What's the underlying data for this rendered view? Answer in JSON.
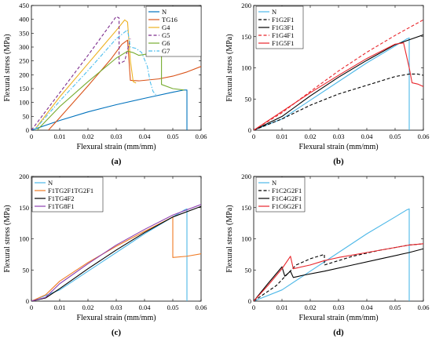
{
  "chart_data": [
    {
      "type": "line",
      "panel_label": "(a)",
      "xlabel": "Flexural strain (mm/mm)",
      "ylabel": "Flexural stress (MPa)",
      "xlim": [
        0,
        0.06
      ],
      "ylim": [
        0,
        450
      ],
      "xticks": [
        0,
        0.01,
        0.02,
        0.03,
        0.04,
        0.05,
        0.06
      ],
      "xtick_labels": [
        "0",
        "0.01",
        "0.02",
        "0.03",
        "0.04",
        "0.05",
        "0.06"
      ],
      "yticks": [
        0,
        50,
        100,
        150,
        200,
        250,
        300,
        350,
        400,
        450
      ],
      "ytick_labels": [
        "0",
        "50",
        "100",
        "150",
        "200",
        "250",
        "300",
        "350",
        "400",
        "450"
      ],
      "legend_position": "top-right",
      "series": [
        {
          "name": "N",
          "color": "#0072bd",
          "dash": "solid",
          "points": [
            [
              0,
              0
            ],
            [
              0.01,
              35
            ],
            [
              0.02,
              66
            ],
            [
              0.03,
              92
            ],
            [
              0.04,
              115
            ],
            [
              0.05,
              137
            ],
            [
              0.054,
              145
            ],
            [
              0.055,
              145
            ],
            [
              0.055,
              0
            ]
          ]
        },
        {
          "name": "TG16",
          "color": "#d95319",
          "dash": "solid",
          "points": [
            [
              0.006,
              0
            ],
            [
              0.01,
              45
            ],
            [
              0.02,
              160
            ],
            [
              0.028,
              255
            ],
            [
              0.032,
              310
            ],
            [
              0.034,
              325
            ],
            [
              0.035,
              180
            ],
            [
              0.038,
              178
            ],
            [
              0.045,
              185
            ],
            [
              0.05,
              195
            ],
            [
              0.055,
              210
            ],
            [
              0.06,
              230
            ]
          ]
        },
        {
          "name": "G4",
          "color": "#edb120",
          "dash": "solid",
          "points": [
            [
              0.001,
              0
            ],
            [
              0.01,
              120
            ],
            [
              0.02,
              240
            ],
            [
              0.03,
              360
            ],
            [
              0.033,
              398
            ],
            [
              0.034,
              390
            ],
            [
              0.035,
              250
            ],
            [
              0.036,
              175
            ],
            [
              0.037,
              170
            ]
          ]
        },
        {
          "name": "G5",
          "color": "#7e2f8e",
          "dash": "dash",
          "points": [
            [
              0,
              0
            ],
            [
              0.01,
              135
            ],
            [
              0.02,
              270
            ],
            [
              0.03,
              410
            ],
            [
              0.031,
              405
            ],
            [
              0.031,
              240
            ],
            [
              0.033,
              250
            ],
            [
              0.035,
              330
            ]
          ]
        },
        {
          "name": "G6",
          "color": "#77ac30",
          "dash": "solid",
          "points": [
            [
              0.002,
              0
            ],
            [
              0.01,
              85
            ],
            [
              0.02,
              175
            ],
            [
              0.03,
              260
            ],
            [
              0.034,
              285
            ],
            [
              0.036,
              280
            ],
            [
              0.038,
              270
            ],
            [
              0.041,
              275
            ],
            [
              0.044,
              278
            ],
            [
              0.046,
              280
            ],
            [
              0.046,
              165
            ],
            [
              0.05,
              150
            ],
            [
              0.054,
              145
            ]
          ]
        },
        {
          "name": "G7",
          "color": "#4dbeee",
          "dash": "dashdot",
          "points": [
            [
              0.001,
              0
            ],
            [
              0.01,
              105
            ],
            [
              0.02,
              215
            ],
            [
              0.03,
              330
            ],
            [
              0.034,
              362
            ],
            [
              0.035,
              300
            ],
            [
              0.037,
              295
            ],
            [
              0.039,
              280
            ],
            [
              0.041,
              230
            ],
            [
              0.042,
              175
            ],
            [
              0.043,
              140
            ],
            [
              0.044,
              128
            ]
          ]
        }
      ]
    },
    {
      "type": "line",
      "panel_label": "(b)",
      "xlabel": "Flexural strain (mm/mm)",
      "ylabel": "Flexural stress (MPa)",
      "xlim": [
        0,
        0.06
      ],
      "ylim": [
        0,
        200
      ],
      "xticks": [
        0,
        0.01,
        0.02,
        0.03,
        0.04,
        0.05,
        0.06
      ],
      "xtick_labels": [
        "0",
        "0.01",
        "0.02",
        "0.03",
        "0.04",
        "0.05",
        "0.06"
      ],
      "yticks": [
        0,
        50,
        100,
        150,
        200
      ],
      "ytick_labels": [
        "0",
        "50",
        "100",
        "150",
        "200"
      ],
      "legend_position": "top-left",
      "series": [
        {
          "name": "N",
          "color": "#4db8e8",
          "dash": "solid",
          "points": [
            [
              0,
              0
            ],
            [
              0.01,
              18
            ],
            [
              0.02,
              48
            ],
            [
              0.03,
              78
            ],
            [
              0.04,
              108
            ],
            [
              0.05,
              135
            ],
            [
              0.054,
              146
            ],
            [
              0.055,
              148
            ],
            [
              0.055,
              0
            ]
          ]
        },
        {
          "name": "F1G2F1",
          "color": "#000000",
          "dash": "dash",
          "points": [
            [
              0,
              0
            ],
            [
              0.01,
              18
            ],
            [
              0.02,
              40
            ],
            [
              0.03,
              58
            ],
            [
              0.04,
              72
            ],
            [
              0.05,
              86
            ],
            [
              0.055,
              90
            ],
            [
              0.058,
              90
            ],
            [
              0.06,
              88
            ]
          ]
        },
        {
          "name": "F1G3F1",
          "color": "#000000",
          "dash": "solid",
          "points": [
            [
              0,
              0
            ],
            [
              0.01,
              22
            ],
            [
              0.02,
              55
            ],
            [
              0.03,
              85
            ],
            [
              0.04,
              112
            ],
            [
              0.05,
              137
            ],
            [
              0.06,
              153
            ]
          ]
        },
        {
          "name": "F1G4F1",
          "color": "#e8252b",
          "dash": "dash",
          "points": [
            [
              0,
              0
            ],
            [
              0.01,
              28
            ],
            [
              0.02,
              62
            ],
            [
              0.03,
              95
            ],
            [
              0.04,
              125
            ],
            [
              0.05,
              152
            ],
            [
              0.06,
              177
            ]
          ]
        },
        {
          "name": "F1G5F1",
          "color": "#e8252b",
          "dash": "solid",
          "points": [
            [
              0,
              0
            ],
            [
              0.01,
              30
            ],
            [
              0.02,
              60
            ],
            [
              0.03,
              88
            ],
            [
              0.04,
              115
            ],
            [
              0.05,
              138
            ],
            [
              0.053,
              140
            ],
            [
              0.055,
              100
            ],
            [
              0.056,
              76
            ],
            [
              0.058,
              74
            ],
            [
              0.059,
              72
            ],
            [
              0.06,
              70
            ]
          ]
        }
      ]
    },
    {
      "type": "line",
      "panel_label": "(c)",
      "xlabel": "Flexural strain (mm/mm)",
      "ylabel": "Flexural stress (MPa)",
      "xlim": [
        0,
        0.06
      ],
      "ylim": [
        0,
        200
      ],
      "xticks": [
        0,
        0.01,
        0.02,
        0.03,
        0.04,
        0.05,
        0.06
      ],
      "xtick_labels": [
        "0",
        "0.01",
        "0.02",
        "0.03",
        "0.04",
        "0.05",
        "0.06"
      ],
      "yticks": [
        0,
        50,
        100,
        150,
        200
      ],
      "ytick_labels": [
        "0",
        "50",
        "100",
        "150",
        "200"
      ],
      "legend_position": "top-left",
      "series": [
        {
          "name": "N",
          "color": "#4db8e8",
          "dash": "solid",
          "points": [
            [
              0,
              0
            ],
            [
              0.01,
              18
            ],
            [
              0.02,
              48
            ],
            [
              0.03,
              78
            ],
            [
              0.04,
              108
            ],
            [
              0.05,
              135
            ],
            [
              0.054,
              146
            ],
            [
              0.055,
              148
            ],
            [
              0.055,
              0
            ]
          ]
        },
        {
          "name": "F1TG2F1TG2F1",
          "color": "#f07b24",
          "dash": "solid",
          "points": [
            [
              0,
              0
            ],
            [
              0.005,
              10
            ],
            [
              0.01,
              32
            ],
            [
              0.02,
              62
            ],
            [
              0.03,
              88
            ],
            [
              0.04,
              112
            ],
            [
              0.05,
              135
            ],
            [
              0.05,
              70
            ],
            [
              0.055,
              72
            ],
            [
              0.06,
              76
            ]
          ]
        },
        {
          "name": "F1TG4F2",
          "color": "#000000",
          "dash": "solid",
          "points": [
            [
              0,
              0
            ],
            [
              0.005,
              5
            ],
            [
              0.01,
              20
            ],
            [
              0.02,
              52
            ],
            [
              0.03,
              82
            ],
            [
              0.04,
              110
            ],
            [
              0.05,
              135
            ],
            [
              0.06,
              152
            ]
          ]
        },
        {
          "name": "F1TG8F1",
          "color": "#8e3fb0",
          "dash": "solid",
          "points": [
            [
              0,
              0
            ],
            [
              0.005,
              6
            ],
            [
              0.01,
              28
            ],
            [
              0.02,
              60
            ],
            [
              0.03,
              90
            ],
            [
              0.04,
              115
            ],
            [
              0.05,
              138
            ],
            [
              0.06,
              155
            ]
          ]
        }
      ]
    },
    {
      "type": "line",
      "panel_label": "(d)",
      "xlabel": "Flexural strain (mm/mm)",
      "ylabel": "Flexural stress (MPa)",
      "xlim": [
        0,
        0.06
      ],
      "ylim": [
        0,
        200
      ],
      "xticks": [
        0,
        0.01,
        0.02,
        0.03,
        0.04,
        0.05,
        0.06
      ],
      "xtick_labels": [
        "0",
        "0.01",
        "0.02",
        "0.03",
        "0.04",
        "0.05",
        "0.06"
      ],
      "yticks": [
        0,
        50,
        100,
        150,
        200
      ],
      "ytick_labels": [
        "0",
        "50",
        "100",
        "150",
        "200"
      ],
      "legend_position": "top-left",
      "series": [
        {
          "name": "N",
          "color": "#4db8e8",
          "dash": "solid",
          "points": [
            [
              0,
              0
            ],
            [
              0.01,
              18
            ],
            [
              0.02,
              48
            ],
            [
              0.03,
              78
            ],
            [
              0.04,
              108
            ],
            [
              0.05,
              135
            ],
            [
              0.054,
              146
            ],
            [
              0.055,
              148
            ],
            [
              0.055,
              0
            ]
          ]
        },
        {
          "name": "F1C2G2F1",
          "color": "#000000",
          "dash": "dash",
          "points": [
            [
              0,
              0
            ],
            [
              0.008,
              25
            ],
            [
              0.015,
              58
            ],
            [
              0.02,
              68
            ],
            [
              0.025,
              75
            ],
            [
              0.025,
              58
            ],
            [
              0.03,
              65
            ],
            [
              0.035,
              72
            ],
            [
              0.045,
              82
            ],
            [
              0.055,
              90
            ],
            [
              0.06,
              92
            ]
          ]
        },
        {
          "name": "F1C4G2F1",
          "color": "#000000",
          "dash": "solid",
          "points": [
            [
              0,
              0
            ],
            [
              0.005,
              28
            ],
            [
              0.01,
              55
            ],
            [
              0.011,
              40
            ],
            [
              0.013,
              48
            ],
            [
              0.014,
              38
            ],
            [
              0.018,
              42
            ],
            [
              0.025,
              48
            ],
            [
              0.035,
              58
            ],
            [
              0.045,
              68
            ],
            [
              0.055,
              78
            ],
            [
              0.06,
              84
            ]
          ]
        },
        {
          "name": "F1C6G2F1",
          "color": "#e8252b",
          "dash": "solid",
          "points": [
            [
              0,
              0
            ],
            [
              0.005,
              25
            ],
            [
              0.01,
              52
            ],
            [
              0.013,
              72
            ],
            [
              0.014,
              52
            ],
            [
              0.02,
              58
            ],
            [
              0.025,
              65
            ],
            [
              0.03,
              70
            ],
            [
              0.04,
              78
            ],
            [
              0.05,
              86
            ],
            [
              0.055,
              90
            ],
            [
              0.06,
              92
            ]
          ]
        }
      ]
    }
  ]
}
